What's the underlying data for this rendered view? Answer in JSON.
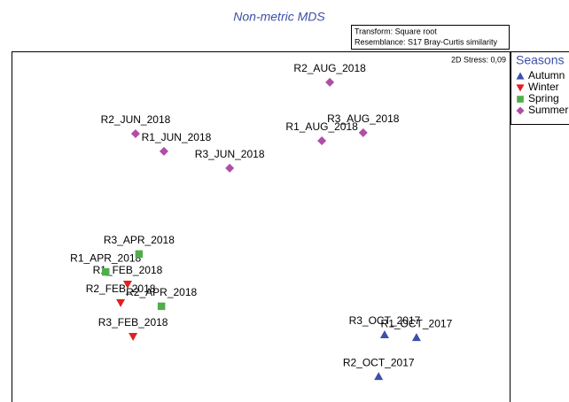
{
  "chart_data": {
    "type": "scatter",
    "title": "Non-metric MDS",
    "annotations": [
      "Transform: Square root",
      "Resemblance: S17 Bray-Curtis similarity"
    ],
    "stress": "2D Stress: 0,09",
    "legend_title": "Seasons",
    "legend": "right",
    "xlim": [
      0,
      100
    ],
    "ylim": [
      0,
      100
    ],
    "series": [
      {
        "name": "Autumn",
        "color": "#3d50a8",
        "marker": "triangle-up",
        "labels": [
          "R1_OCT_2017",
          "R2_OCT_2017",
          "R3_OCT_2017"
        ],
        "x": [
          81.3,
          73.7,
          74.9
        ],
        "values": [
          18.4,
          7.3,
          19.2
        ]
      },
      {
        "name": "Winter",
        "color": "#e0201f",
        "marker": "triangle-down",
        "labels": [
          "R1_FEB_2018",
          "R2_FEB_2018",
          "R3_FEB_2018"
        ],
        "x": [
          23.3,
          21.9,
          24.4
        ],
        "values": [
          33.6,
          28.3,
          18.7
        ]
      },
      {
        "name": "Spring",
        "color": "#4fae4a",
        "marker": "square",
        "labels": [
          "R1_APR_2018",
          "R2_APR_2018",
          "R3_APR_2018"
        ],
        "x": [
          18.9,
          30.1,
          25.6
        ],
        "values": [
          37.1,
          27.3,
          42.2
        ]
      },
      {
        "name": "Summer",
        "color": "#b04ea6",
        "marker": "diamond",
        "labels": [
          "R1_JUN_2018",
          "R2_JUN_2018",
          "R3_JUN_2018",
          "R1_AUG_2018",
          "R2_AUG_2018",
          "R3_AUG_2018"
        ],
        "x": [
          30.6,
          24.9,
          43.8,
          62.3,
          63.9,
          70.6
        ],
        "values": [
          71.5,
          76.5,
          66.7,
          74.5,
          91.2,
          76.8
        ]
      }
    ]
  }
}
